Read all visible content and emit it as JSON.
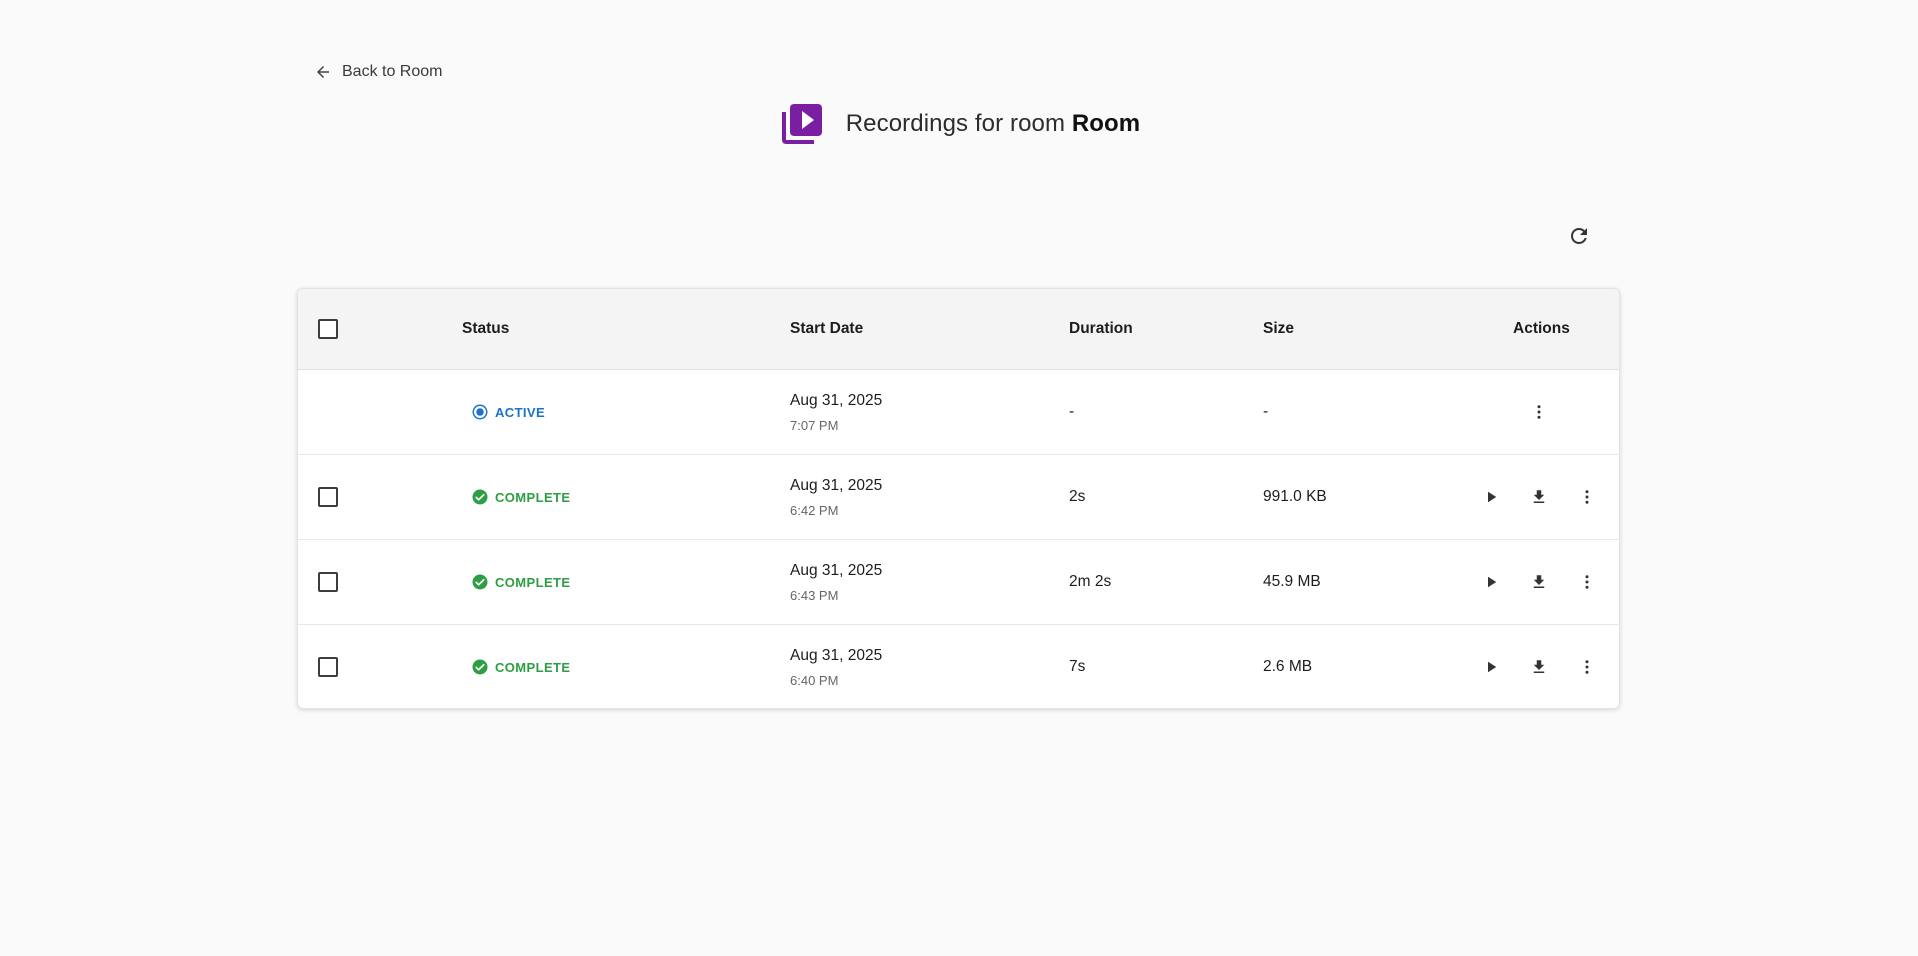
{
  "nav": {
    "back_label": "Back to Room"
  },
  "header": {
    "title_prefix": "Recordings for room",
    "room_name": "Room",
    "icon": "video-library-icon",
    "accent_color": "#7b1fa2"
  },
  "toolbar": {
    "refresh_icon": "refresh-icon"
  },
  "table": {
    "columns": {
      "status": "Status",
      "start_date": "Start Date",
      "duration": "Duration",
      "size": "Size",
      "actions": "Actions"
    },
    "rows": [
      {
        "selectable": false,
        "status": "ACTIVE",
        "status_color": "#1a73c8",
        "date": "Aug 31, 2025",
        "time": "7:07 PM",
        "duration": "-",
        "size": "-"
      },
      {
        "selectable": true,
        "status": "COMPLETE",
        "status_color": "#2e9e44",
        "date": "Aug 31, 2025",
        "time": "6:42 PM",
        "duration": "2s",
        "size": "991.0 KB"
      },
      {
        "selectable": true,
        "status": "COMPLETE",
        "status_color": "#2e9e44",
        "date": "Aug 31, 2025",
        "time": "6:43 PM",
        "duration": "2m 2s",
        "size": "45.9 MB"
      },
      {
        "selectable": true,
        "status": "COMPLETE",
        "status_color": "#2e9e44",
        "date": "Aug 31, 2025",
        "time": "6:40 PM",
        "duration": "7s",
        "size": "2.6 MB"
      }
    ]
  }
}
